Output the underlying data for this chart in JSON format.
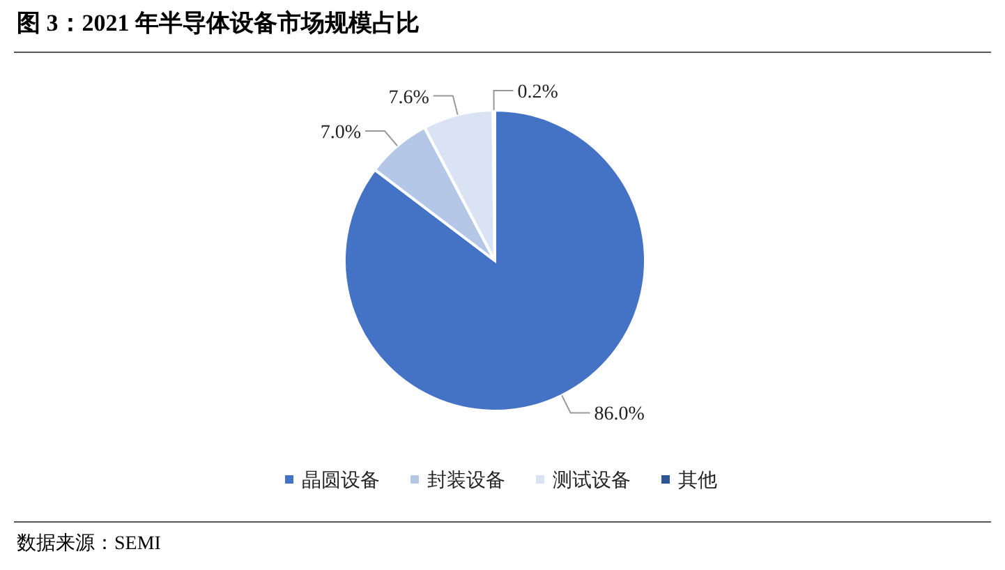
{
  "chart_data": {
    "type": "pie",
    "title": "图 3：2021 年半导体设备市场规模占比",
    "categories": [
      "晶圆设备",
      "封装设备",
      "测试设备",
      "其他"
    ],
    "values": [
      86.0,
      7.0,
      7.6,
      0.2
    ],
    "colors": [
      "#4472c4",
      "#b4c7e7",
      "#dae3f3",
      "#2f5597"
    ],
    "value_labels": [
      "86.0%",
      "7.0%",
      "7.6%",
      "0.2%"
    ],
    "legend": "bottom",
    "annotations": [
      "数据来源：SEMI"
    ]
  }
}
